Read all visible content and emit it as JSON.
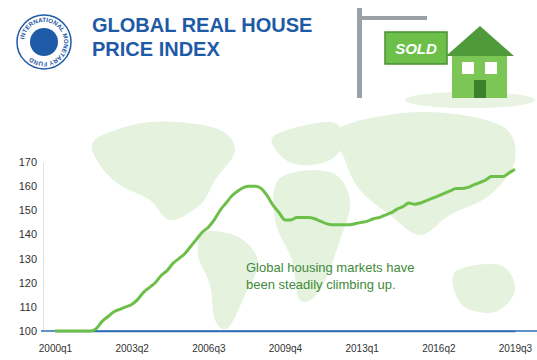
{
  "chart_data": {
    "type": "line",
    "title": "GLOBAL REAL HOUSE PRICE INDEX",
    "logo_text": "INTERNATIONAL MONETARY FUND",
    "sign_text": "SOLD",
    "annotations": [
      "Global housing markets have",
      "been steadily climbing up."
    ],
    "categories": [
      "2000q1",
      null,
      null,
      null,
      null,
      null,
      null,
      null,
      null,
      null,
      null,
      null,
      null,
      "2003q2",
      null,
      null,
      null,
      null,
      null,
      null,
      null,
      null,
      null,
      null,
      null,
      null,
      "2006q3",
      null,
      null,
      null,
      null,
      null,
      null,
      null,
      null,
      null,
      null,
      null,
      null,
      "2009q4",
      null,
      null,
      null,
      null,
      null,
      null,
      null,
      null,
      null,
      null,
      null,
      null,
      "2013q1",
      null,
      null,
      null,
      null,
      null,
      null,
      null,
      null,
      null,
      null,
      null,
      null,
      "2016q2",
      null,
      null,
      null,
      null,
      null,
      null,
      null,
      null,
      null,
      null,
      null,
      null,
      "2019q3"
    ],
    "values": [
      100,
      100,
      100,
      100,
      100,
      100,
      100,
      101,
      104,
      106,
      108,
      109,
      110,
      111,
      113,
      116,
      118,
      120,
      123,
      125,
      128,
      130,
      132,
      135,
      138,
      141,
      143,
      146,
      150,
      153,
      156,
      158,
      159.5,
      160,
      160,
      159,
      156,
      152,
      149,
      146,
      146,
      147,
      147,
      147,
      146.5,
      145.5,
      144.5,
      144,
      144,
      144,
      144,
      144.5,
      145,
      145.5,
      146.5,
      147,
      148,
      149,
      150.5,
      151.5,
      153,
      152.5,
      153,
      154,
      155,
      156,
      157,
      158,
      159,
      159,
      159.5,
      160.5,
      161.5,
      162.5,
      164,
      164,
      164,
      165.5,
      167
    ],
    "color": "#6cc04a",
    "ylim": [
      100,
      170
    ],
    "yticks": [
      100,
      110,
      120,
      130,
      140,
      150,
      160,
      170
    ],
    "grid": false
  }
}
